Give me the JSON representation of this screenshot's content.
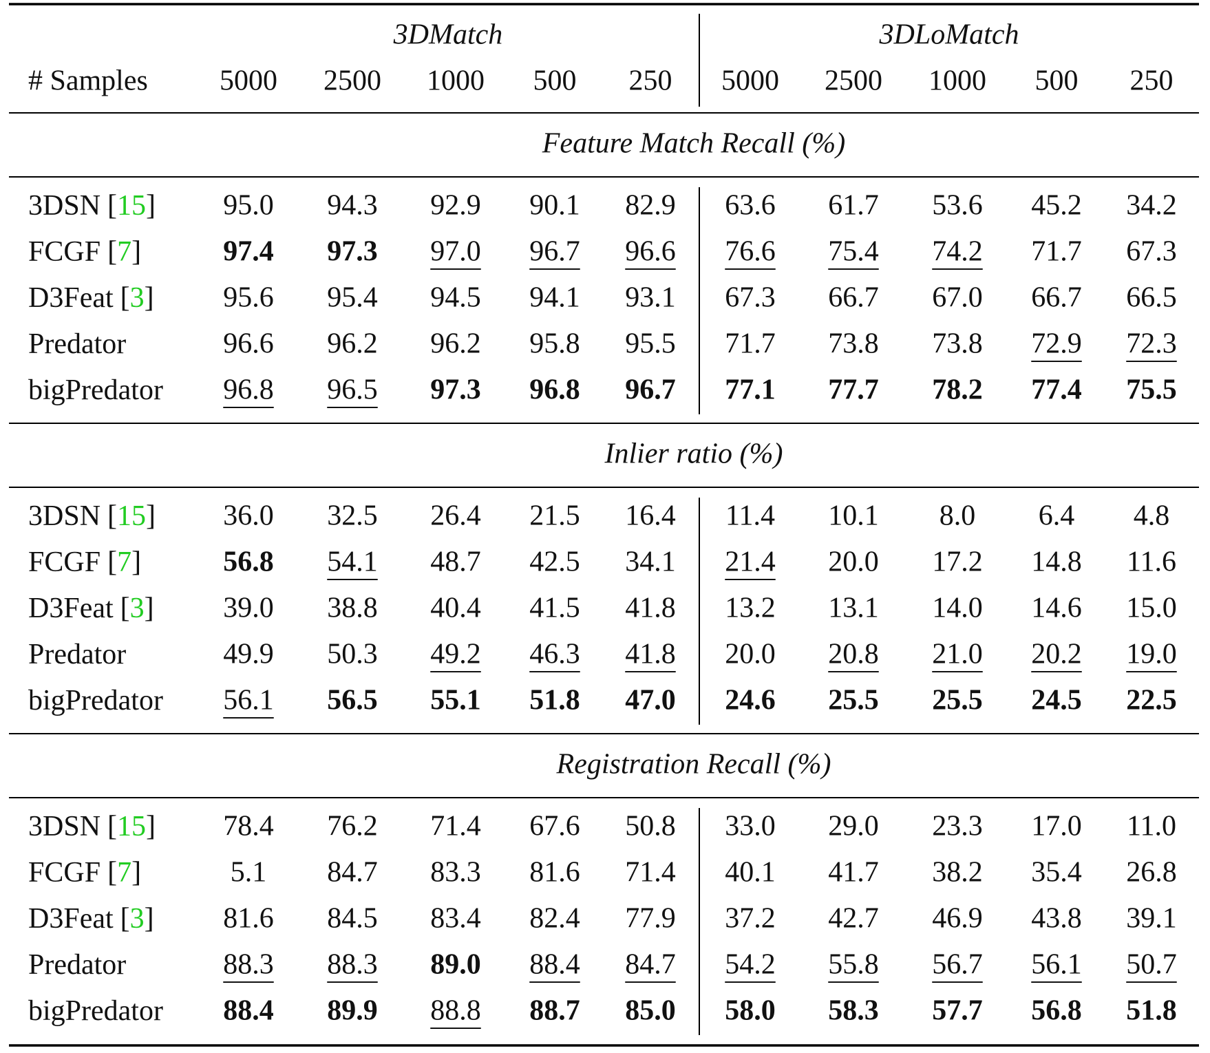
{
  "header": {
    "group_labels": [
      "3DMatch",
      "3DLoMatch"
    ],
    "samples_label": "# Samples",
    "samples": [
      "5000",
      "2500",
      "1000",
      "500",
      "250",
      "5000",
      "2500",
      "1000",
      "500",
      "250"
    ]
  },
  "sections": [
    {
      "title": "Feature Match Recall (%)",
      "rows": [
        {
          "method": "3DSN",
          "cite": "[15]",
          "values": [
            "95.0",
            "94.3",
            "92.9",
            "90.1",
            "82.9",
            "63.6",
            "61.7",
            "53.6",
            "45.2",
            "34.2"
          ],
          "bold": [],
          "underline": []
        },
        {
          "method": "FCGF",
          "cite": "[7]",
          "values": [
            "97.4",
            "97.3",
            "97.0",
            "96.7",
            "96.6",
            "76.6",
            "75.4",
            "74.2",
            "71.7",
            "67.3"
          ],
          "bold": [
            0,
            1
          ],
          "underline": [
            2,
            3,
            4,
            5,
            6,
            7
          ]
        },
        {
          "method": "D3Feat",
          "cite": "[3]",
          "values": [
            "95.6",
            "95.4",
            "94.5",
            "94.1",
            "93.1",
            "67.3",
            "66.7",
            "67.0",
            "66.7",
            "66.5"
          ],
          "bold": [],
          "underline": []
        },
        {
          "method": "Predator",
          "values": [
            "96.6",
            "96.2",
            "96.2",
            "95.8",
            "95.5",
            "71.7",
            "73.8",
            "73.8",
            "72.9",
            "72.3"
          ],
          "bold": [],
          "underline": [
            8,
            9
          ]
        },
        {
          "method": "bigPredator",
          "values": [
            "96.8",
            "96.5",
            "97.3",
            "96.8",
            "96.7",
            "77.1",
            "77.7",
            "78.2",
            "77.4",
            "75.5"
          ],
          "bold": [
            2,
            3,
            4,
            5,
            6,
            7,
            8,
            9
          ],
          "underline": [
            0,
            1
          ]
        }
      ]
    },
    {
      "title": "Inlier ratio (%)",
      "rows": [
        {
          "method": "3DSN",
          "cite": "[15]",
          "values": [
            "36.0",
            "32.5",
            "26.4",
            "21.5",
            "16.4",
            "11.4",
            "10.1",
            "8.0",
            "6.4",
            "4.8"
          ],
          "bold": [],
          "underline": []
        },
        {
          "method": "FCGF",
          "cite": "[7]",
          "values": [
            "56.8",
            "54.1",
            "48.7",
            "42.5",
            "34.1",
            "21.4",
            "20.0",
            "17.2",
            "14.8",
            "11.6"
          ],
          "bold": [
            0
          ],
          "underline": [
            1,
            5
          ]
        },
        {
          "method": "D3Feat",
          "cite": "[3]",
          "values": [
            "39.0",
            "38.8",
            "40.4",
            "41.5",
            "41.8",
            "13.2",
            "13.1",
            "14.0",
            "14.6",
            "15.0"
          ],
          "bold": [],
          "underline": []
        },
        {
          "method": "Predator",
          "values": [
            "49.9",
            "50.3",
            "49.2",
            "46.3",
            "41.8",
            "20.0",
            "20.8",
            "21.0",
            "20.2",
            "19.0"
          ],
          "bold": [],
          "underline": [
            2,
            3,
            4,
            6,
            7,
            8,
            9
          ]
        },
        {
          "method": "bigPredator",
          "values": [
            "56.1",
            "56.5",
            "55.1",
            "51.8",
            "47.0",
            "24.6",
            "25.5",
            "25.5",
            "24.5",
            "22.5"
          ],
          "bold": [
            1,
            2,
            3,
            4,
            5,
            6,
            7,
            8,
            9
          ],
          "underline": [
            0
          ]
        }
      ]
    },
    {
      "title": "Registration Recall (%)",
      "rows": [
        {
          "method": "3DSN",
          "cite": "[15]",
          "values": [
            "78.4",
            "76.2",
            "71.4",
            "67.6",
            "50.8",
            "33.0",
            "29.0",
            "23.3",
            "17.0",
            "11.0"
          ],
          "bold": [],
          "underline": []
        },
        {
          "method": "FCGF",
          "cite": "[7]",
          "values": [
            "5.1",
            "84.7",
            "83.3",
            "81.6",
            "71.4",
            "40.1",
            "41.7",
            "38.2",
            "35.4",
            "26.8"
          ],
          "bold": [],
          "underline": []
        },
        {
          "method": "D3Feat",
          "cite": "[3]",
          "values": [
            "81.6",
            "84.5",
            "83.4",
            "82.4",
            "77.9",
            "37.2",
            "42.7",
            "46.9",
            "43.8",
            "39.1"
          ],
          "bold": [],
          "underline": []
        },
        {
          "method": "Predator",
          "values": [
            "88.3",
            "88.3",
            "89.0",
            "88.4",
            "84.7",
            "54.2",
            "55.8",
            "56.7",
            "56.1",
            "50.7"
          ],
          "bold": [
            2
          ],
          "underline": [
            0,
            1,
            3,
            4,
            5,
            6,
            7,
            8,
            9
          ]
        },
        {
          "method": "bigPredator",
          "values": [
            "88.4",
            "89.9",
            "88.8",
            "88.7",
            "85.0",
            "58.0",
            "58.3",
            "57.7",
            "56.8",
            "51.8"
          ],
          "bold": [
            0,
            1,
            3,
            4,
            5,
            6,
            7,
            8,
            9
          ],
          "underline": [
            2
          ]
        }
      ]
    }
  ]
}
